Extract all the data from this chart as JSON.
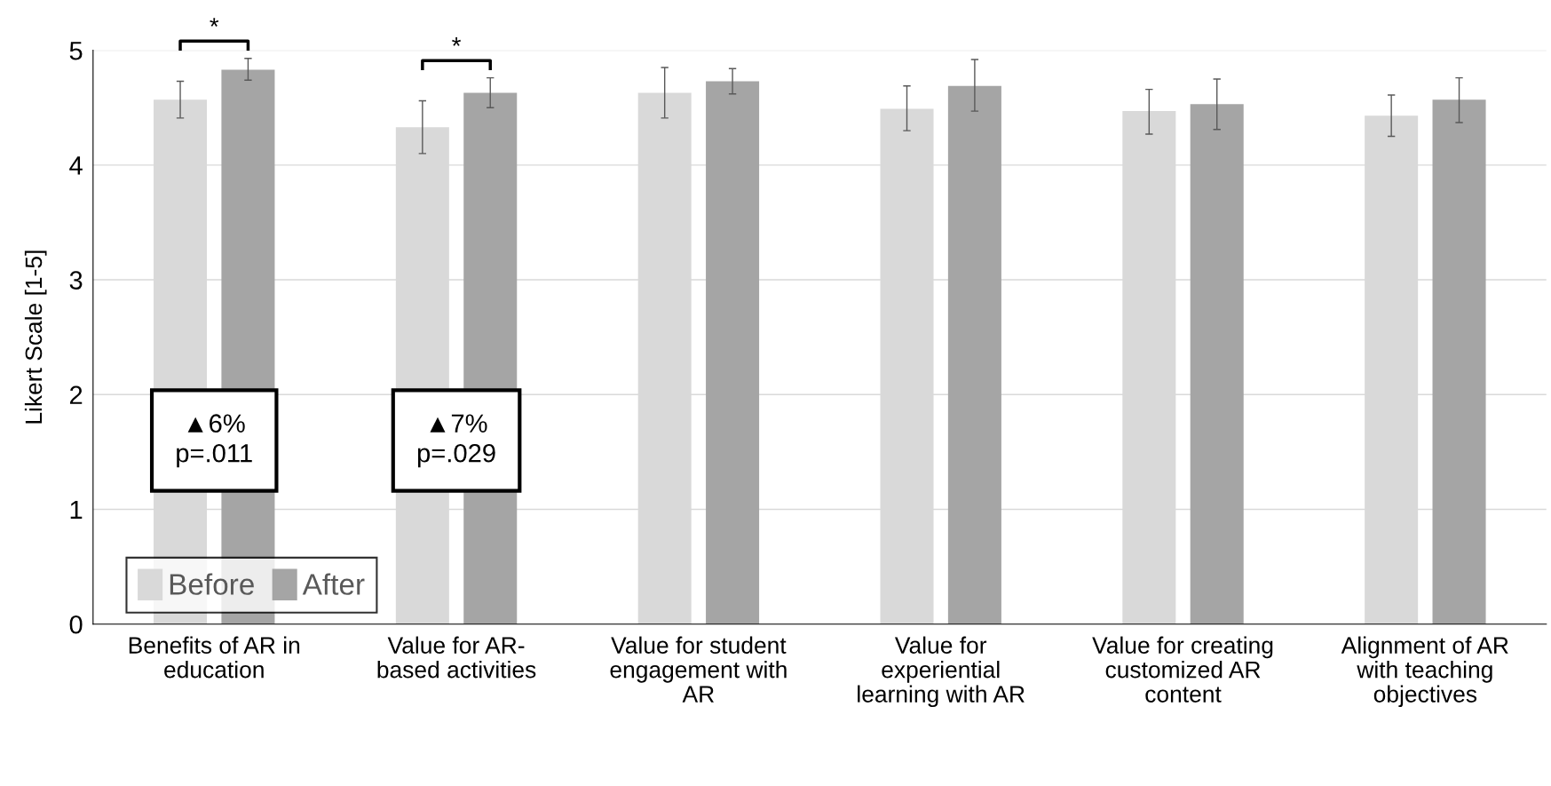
{
  "chart_data": {
    "type": "bar",
    "ylabel": "Likert Scale [1-5]",
    "categories": [
      "Benefits of AR in\neducation",
      "Value for AR-\nbased activities",
      "Value for student\nengagement with\nAR",
      "Value for\nexperiential\nlearning with AR",
      "Value for creating\ncustomized AR\ncontent",
      "Alignment of AR\nwith teaching\nobjectives"
    ],
    "series": [
      {
        "name": "Before",
        "color": "#d9d9d9",
        "values": [
          4.57,
          4.33,
          4.63,
          4.49,
          4.47,
          4.43
        ],
        "errors": [
          [
            4.41,
            4.73
          ],
          [
            4.1,
            4.56
          ],
          [
            4.41,
            4.85
          ],
          [
            4.3,
            4.69
          ],
          [
            4.27,
            4.66
          ],
          [
            4.25,
            4.61
          ]
        ]
      },
      {
        "name": "After",
        "color": "#a5a5a5",
        "values": [
          4.83,
          4.63,
          4.73,
          4.69,
          4.53,
          4.57
        ],
        "errors": [
          [
            4.74,
            4.93
          ],
          [
            4.5,
            4.76
          ],
          [
            4.62,
            4.84
          ],
          [
            4.47,
            4.92
          ],
          [
            4.31,
            4.75
          ],
          [
            4.37,
            4.76
          ]
        ]
      }
    ],
    "ylim": [
      0,
      5
    ],
    "yticks": [
      0,
      1,
      2,
      3,
      4,
      5
    ],
    "grid": "y",
    "legend": "bottom left",
    "annotations": [
      "*",
      "*",
      "▲6%\np=.011",
      "▲7%\np=.029"
    ]
  }
}
